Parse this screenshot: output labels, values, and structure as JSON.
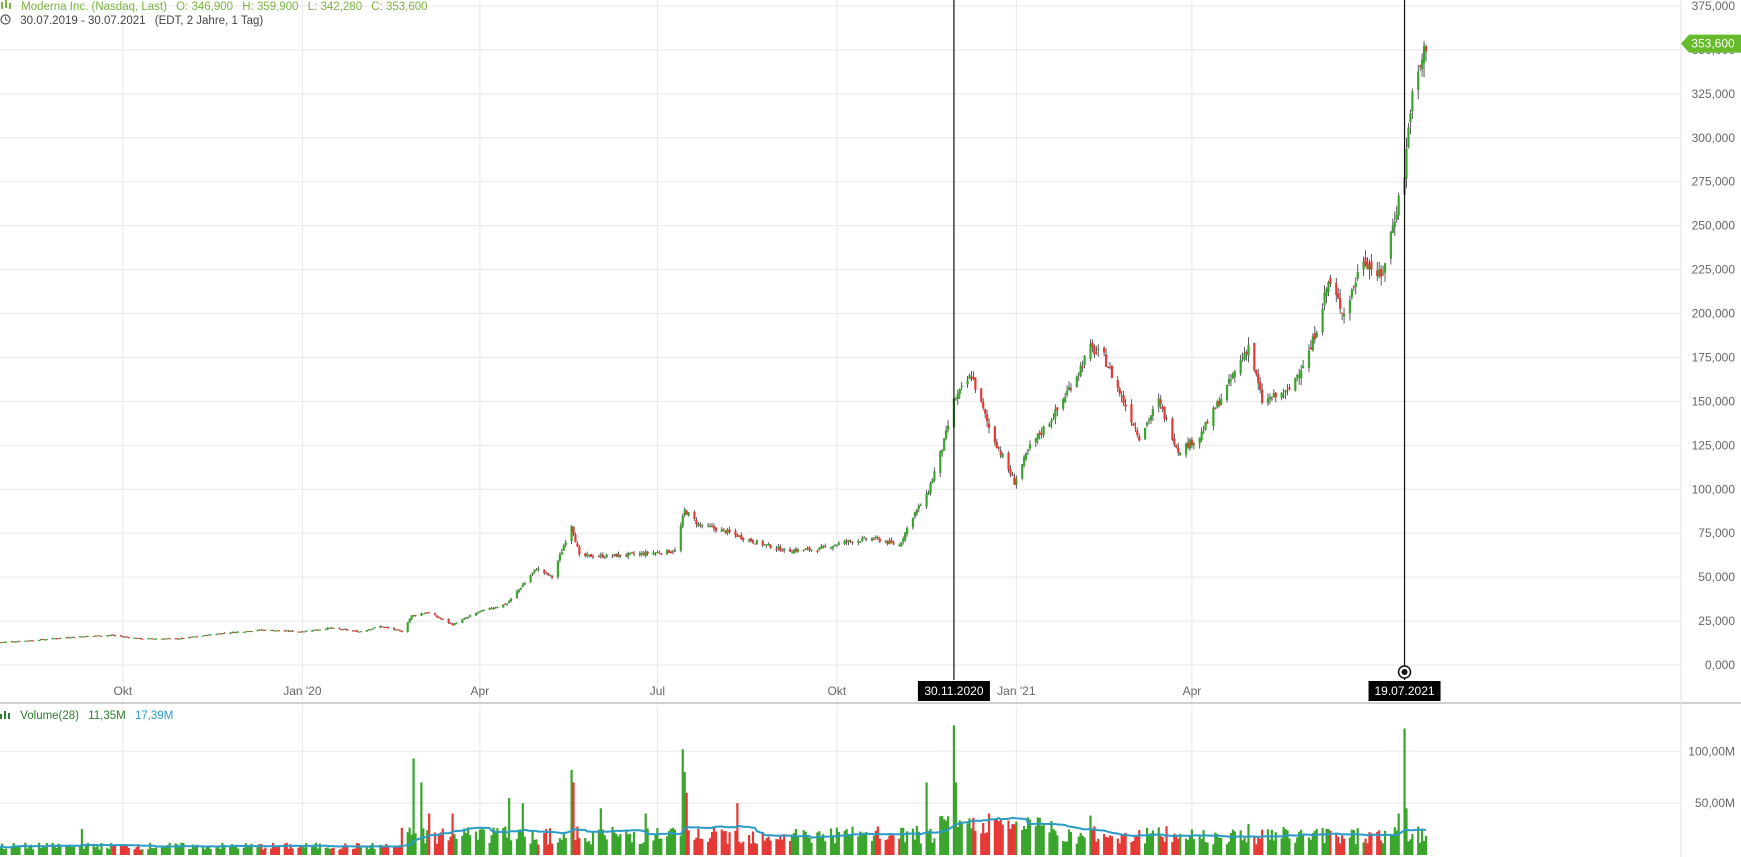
{
  "header": {
    "instrument": "Moderna Inc. (Nasdaq, Last)",
    "open": "O: 346,900",
    "high": "H: 359,900",
    "low": "L: 342,280",
    "close": "C: 353,600",
    "period": "30.07.2019 - 30.07.2021",
    "timeframe": "(EDT, 2 Jahre, 1 Tag)",
    "volume_label": "Volume(28)",
    "volume_value": "11,35M",
    "volume_ma_value": "17,39M",
    "icons": [
      "candlestick-icon",
      "clock-icon",
      "volume-bars-icon"
    ]
  },
  "colors": {
    "up": "#3aa52c",
    "down": "#e53935",
    "price_tag": "#66bb2a",
    "volume_ma": "#2a9bc7",
    "grid": "#e8e8e8",
    "crosshair": "#111111"
  },
  "chart_data": [
    {
      "type": "candlestick",
      "title": "Moderna Inc. (Nasdaq, Last)",
      "last_price": 353.6,
      "last_price_label": "353,600",
      "ylim": [
        0,
        375
      ],
      "y_ticks": [
        {
          "v": 0,
          "label": "0,000"
        },
        {
          "v": 25,
          "label": "25,000"
        },
        {
          "v": 50,
          "label": "50,000"
        },
        {
          "v": 75,
          "label": "75,000"
        },
        {
          "v": 100,
          "label": "100,000"
        },
        {
          "v": 125,
          "label": "125,000"
        },
        {
          "v": 150,
          "label": "150,000"
        },
        {
          "v": 175,
          "label": "175,000"
        },
        {
          "v": 200,
          "label": "200,000"
        },
        {
          "v": 225,
          "label": "225,000"
        },
        {
          "v": 250,
          "label": "250,000"
        },
        {
          "v": 275,
          "label": "275,000"
        },
        {
          "v": 300,
          "label": "300,000"
        },
        {
          "v": 325,
          "label": "325,000"
        },
        {
          "v": 350,
          "label": "350,000"
        },
        {
          "v": 375,
          "label": "375,000"
        }
      ],
      "x_ticks": [
        {
          "d": "2019-10-01",
          "label": "Okt"
        },
        {
          "d": "2020-01-01",
          "label": "Jan '20"
        },
        {
          "d": "2020-04-01",
          "label": "Apr"
        },
        {
          "d": "2020-07-01",
          "label": "Jul"
        },
        {
          "d": "2020-10-01",
          "label": "Okt"
        },
        {
          "d": "2021-01-01",
          "label": "Jan '21"
        },
        {
          "d": "2021-04-01",
          "label": "Apr"
        }
      ],
      "markers": [
        {
          "d": "2020-11-30",
          "label": "30.11.2020"
        },
        {
          "d": "2021-07-19",
          "label": "19.07.2021"
        }
      ],
      "closes": [
        [
          "2019-07-30",
          13
        ],
        [
          "2019-08-15",
          14
        ],
        [
          "2019-09-05",
          16
        ],
        [
          "2019-09-25",
          17
        ],
        [
          "2019-10-10",
          15
        ],
        [
          "2019-10-30",
          15
        ],
        [
          "2019-11-20",
          18
        ],
        [
          "2019-12-10",
          20
        ],
        [
          "2019-12-31",
          19
        ],
        [
          "2020-01-15",
          21
        ],
        [
          "2020-01-30",
          19
        ],
        [
          "2020-02-10",
          22
        ],
        [
          "2020-02-21",
          19
        ],
        [
          "2020-02-26",
          28
        ],
        [
          "2020-03-05",
          30
        ],
        [
          "2020-03-18",
          23
        ],
        [
          "2020-03-31",
          30
        ],
        [
          "2020-04-15",
          35
        ],
        [
          "2020-04-30",
          55
        ],
        [
          "2020-05-08",
          50
        ],
        [
          "2020-05-18",
          80
        ],
        [
          "2020-05-22",
          62
        ],
        [
          "2020-06-05",
          62
        ],
        [
          "2020-06-20",
          63
        ],
        [
          "2020-06-30",
          64
        ],
        [
          "2020-07-10",
          65
        ],
        [
          "2020-07-15",
          88
        ],
        [
          "2020-07-22",
          80
        ],
        [
          "2020-08-05",
          76
        ],
        [
          "2020-08-20",
          70
        ],
        [
          "2020-09-05",
          65
        ],
        [
          "2020-09-22",
          66
        ],
        [
          "2020-10-05",
          70
        ],
        [
          "2020-10-20",
          72
        ],
        [
          "2020-11-02",
          68
        ],
        [
          "2020-11-09",
          85
        ],
        [
          "2020-11-16",
          96
        ],
        [
          "2020-11-25",
          127
        ],
        [
          "2020-11-30",
          150
        ],
        [
          "2020-12-03",
          155
        ],
        [
          "2020-12-09",
          165
        ],
        [
          "2020-12-18",
          135
        ],
        [
          "2020-12-31",
          104
        ],
        [
          "2021-01-08",
          124
        ],
        [
          "2021-01-22",
          145
        ],
        [
          "2021-02-08",
          180
        ],
        [
          "2021-02-15",
          175
        ],
        [
          "2021-02-25",
          150
        ],
        [
          "2021-03-05",
          130
        ],
        [
          "2021-03-15",
          150
        ],
        [
          "2021-03-25",
          122
        ],
        [
          "2021-04-05",
          130
        ],
        [
          "2021-04-20",
          160
        ],
        [
          "2021-04-30",
          182
        ],
        [
          "2021-05-07",
          150
        ],
        [
          "2021-05-20",
          155
        ],
        [
          "2021-06-01",
          180
        ],
        [
          "2021-06-10",
          218
        ],
        [
          "2021-06-18",
          200
        ],
        [
          "2021-06-28",
          232
        ],
        [
          "2021-07-07",
          220
        ],
        [
          "2021-07-14",
          255
        ],
        [
          "2021-07-19",
          280
        ],
        [
          "2021-07-22",
          318
        ],
        [
          "2021-07-27",
          340
        ],
        [
          "2021-07-30",
          353.6
        ]
      ]
    },
    {
      "type": "bar",
      "title": "Volume(28)",
      "ylim": [
        0,
        135
      ],
      "y_ticks": [
        {
          "v": 50,
          "label": "50,00M"
        },
        {
          "v": 100,
          "label": "100,00M"
        }
      ],
      "ma_period": 28,
      "last_volume": "11,35M",
      "last_ma": "17,39M",
      "baseline": 5,
      "spikes": [
        [
          "2019-09-10",
          25
        ],
        [
          "2019-11-08",
          10
        ],
        [
          "2020-02-24",
          22
        ],
        [
          "2020-02-27",
          93
        ],
        [
          "2020-03-02",
          70
        ],
        [
          "2020-03-06",
          40
        ],
        [
          "2020-03-18",
          40
        ],
        [
          "2020-04-16",
          55
        ],
        [
          "2020-04-23",
          50
        ],
        [
          "2020-05-18",
          82
        ],
        [
          "2020-05-19",
          70
        ],
        [
          "2020-06-02",
          45
        ],
        [
          "2020-06-25",
          40
        ],
        [
          "2020-07-14",
          102
        ],
        [
          "2020-07-15",
          80
        ],
        [
          "2020-07-16",
          60
        ],
        [
          "2020-08-11",
          50
        ],
        [
          "2020-10-12",
          18
        ],
        [
          "2020-11-11",
          28
        ],
        [
          "2020-11-16",
          70
        ],
        [
          "2020-11-30",
          125
        ],
        [
          "2020-12-01",
          70
        ],
        [
          "2020-12-18",
          40
        ],
        [
          "2021-01-20",
          25
        ],
        [
          "2021-02-08",
          38
        ],
        [
          "2021-04-30",
          30
        ],
        [
          "2021-06-10",
          25
        ],
        [
          "2021-07-16",
          40
        ],
        [
          "2021-07-19",
          122
        ],
        [
          "2021-07-20",
          45
        ]
      ]
    }
  ]
}
